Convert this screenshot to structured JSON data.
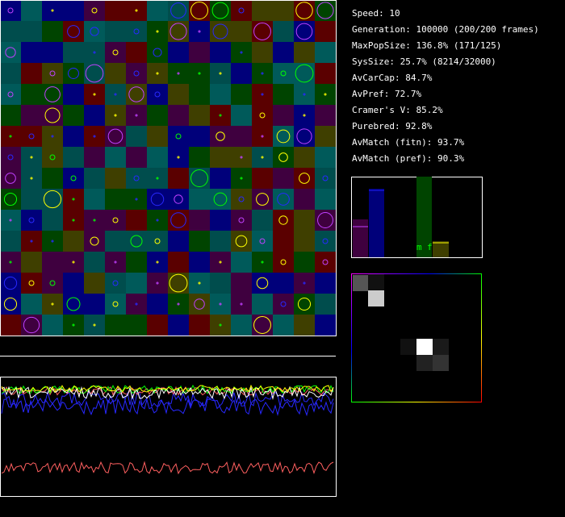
{
  "stats": [
    "Speed: 10",
    "Generation: 100000 (200/200 frames)",
    "MaxPopSize: 136.8% (171/125)",
    "SysSize: 25.7% (8214/32000)",
    "AvCarCap: 84.7%",
    "AvPref: 72.7%",
    "Cramer's V: 85.2%",
    "Purebred: 92.8%",
    "AvMatch (fitn): 93.7%",
    "AvMatch (pref): 90.3%"
  ],
  "bar_panel": {
    "labels": [
      "m",
      "f"
    ]
  }
}
